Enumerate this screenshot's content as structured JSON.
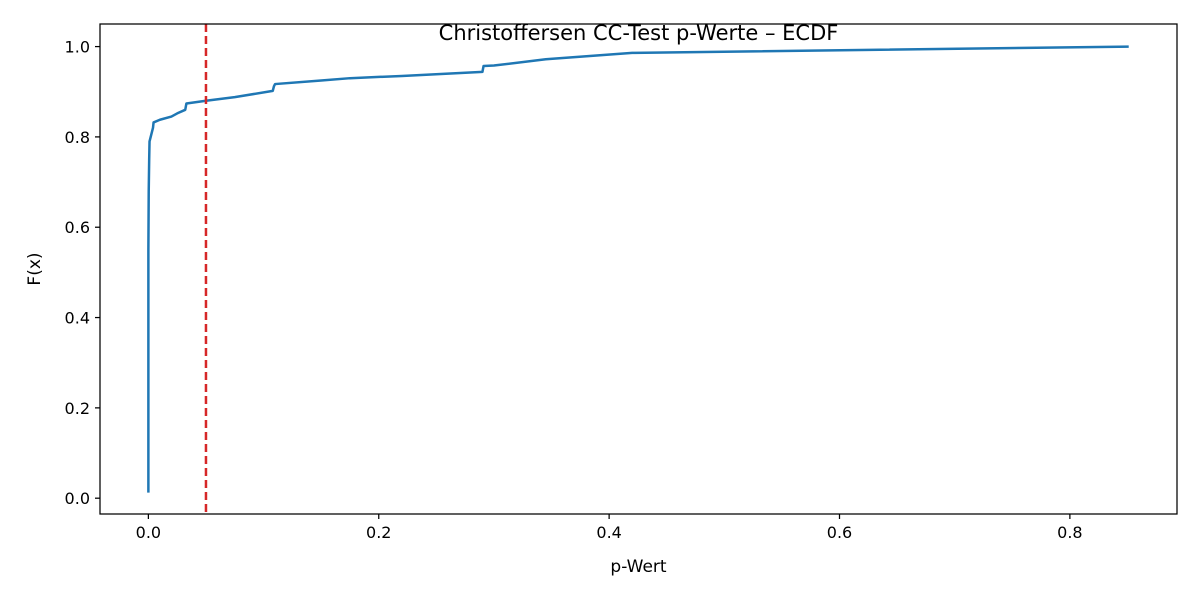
{
  "chart_data": {
    "type": "line",
    "title": "Christoffersen CC-Test p-Werte – ECDF",
    "xlabel": "p-Wert",
    "ylabel": "F(x)",
    "xlim": [
      -0.042,
      0.893
    ],
    "ylim": [
      -0.035,
      1.05
    ],
    "x_ticks": [
      0.0,
      0.2,
      0.4,
      0.6,
      0.8
    ],
    "x_tick_labels": [
      "0.0",
      "0.2",
      "0.4",
      "0.6",
      "0.8"
    ],
    "y_ticks": [
      0.0,
      0.2,
      0.4,
      0.6,
      0.8,
      1.0
    ],
    "y_tick_labels": [
      "0.0",
      "0.2",
      "0.4",
      "0.6",
      "0.8",
      "1.0"
    ],
    "grid": false,
    "legend": "none",
    "series": [
      {
        "color": "#1f77b4",
        "x": [
          0.0,
          0.0,
          0.0003,
          0.0007,
          0.001,
          0.002,
          0.004,
          0.0045,
          0.01,
          0.02,
          0.025,
          0.032,
          0.033,
          0.05,
          0.075,
          0.108,
          0.109,
          0.11,
          0.15,
          0.175,
          0.22,
          0.29,
          0.291,
          0.3,
          0.345,
          0.42,
          0.85
        ],
        "y": [
          0.015,
          0.55,
          0.68,
          0.75,
          0.79,
          0.8,
          0.82,
          0.832,
          0.838,
          0.845,
          0.852,
          0.86,
          0.874,
          0.88,
          0.888,
          0.902,
          0.912,
          0.917,
          0.925,
          0.93,
          0.935,
          0.944,
          0.957,
          0.958,
          0.972,
          0.986,
          1.0
        ]
      }
    ],
    "reference_line": {
      "orientation": "vertical",
      "x": 0.05,
      "color": "#d62728",
      "style": "dashed"
    }
  }
}
